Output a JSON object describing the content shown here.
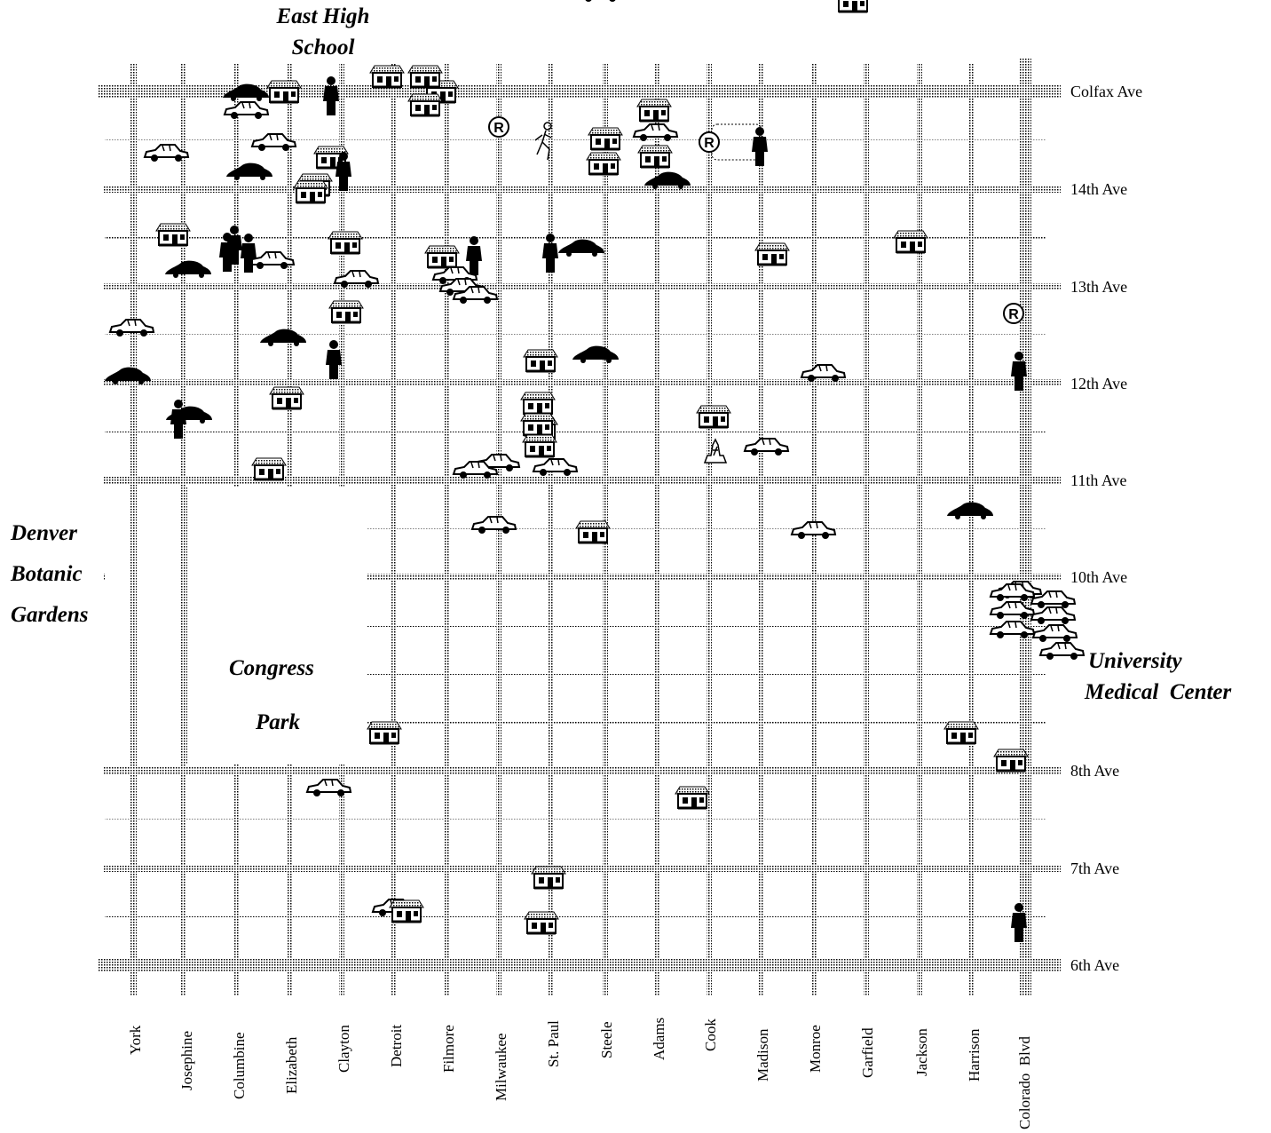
{
  "landmarks": {
    "east_high_line1": "East High",
    "east_high_line2": "School",
    "botanic_line1": "Denver",
    "botanic_line2": "Botanic",
    "botanic_line3": "Gardens",
    "congress_line1": "Congress",
    "congress_line2": "Park",
    "medical_line1": "University",
    "medical_line2": "Medical  Center"
  },
  "avenues": [
    "Colfax Ave",
    "14th Ave",
    "13th Ave",
    "12th Ave",
    "11th Ave",
    "10th Ave",
    "8th Ave",
    "7th Ave",
    "6th Ave"
  ],
  "streets": [
    "York",
    "Josephine",
    "Columbine",
    "Elizabeth",
    "Clayton",
    "Detroit",
    "Filmore",
    "Milwaukee",
    "St. Paul",
    "Steele",
    "Adams",
    "Cook",
    "Madison",
    "Monroe",
    "Garfield",
    "Jackson",
    "Harrison",
    "Colorado  Blvd"
  ],
  "colors": {
    "ink": "#000000",
    "street_shade": "#9a9a9a",
    "background": "#ffffff"
  },
  "markers": [
    {
      "type": "house",
      "street": "Elizabeth",
      "ave": "Colfax Ave"
    },
    {
      "type": "house",
      "street": "Detroit",
      "ave": "Colfax Ave"
    },
    {
      "type": "house",
      "street": "Filmore",
      "ave": "Colfax Ave"
    },
    {
      "type": "person",
      "street": "Clayton",
      "ave": "Colfax Ave"
    },
    {
      "type": "car-dark",
      "street": "Columbine",
      "ave": "Colfax Ave"
    },
    {
      "type": "car",
      "street": "Columbine",
      "ave": "Colfax Ave"
    },
    {
      "type": "car",
      "street": "Elizabeth",
      "ave": "14th Ave"
    },
    {
      "type": "house",
      "street": "Clayton",
      "ave": "14th Ave"
    },
    {
      "type": "house",
      "street": "Clayton",
      "ave": "14th Ave"
    },
    {
      "type": "person",
      "street": "Clayton",
      "ave": "14th Ave"
    },
    {
      "type": "runner",
      "street": "St. Paul",
      "ave": "14th Ave"
    },
    {
      "type": "car",
      "street": "Steele",
      "ave": "Colfax Ave"
    },
    {
      "type": "house",
      "street": "Steele",
      "ave": "14th Ave"
    },
    {
      "type": "house",
      "street": "Adams",
      "ave": "14th Ave"
    },
    {
      "type": "car",
      "street": "Adams",
      "ave": "14th Ave"
    },
    {
      "type": "car-dark",
      "street": "Adams",
      "ave": "14th Ave"
    },
    {
      "type": "restaurant",
      "street": "Cook",
      "ave": "14th Ave"
    },
    {
      "type": "person",
      "street": "Madison",
      "ave": "14th Ave"
    },
    {
      "type": "house",
      "street": "Monroe",
      "ave": "Colfax Ave"
    },
    {
      "type": "restaurant",
      "street": "Milwaukee",
      "ave": "14th Ave"
    },
    {
      "type": "car-dark",
      "street": "Columbine",
      "ave": "14th Ave"
    },
    {
      "type": "car",
      "street": "Josephine",
      "ave": "14th Ave"
    },
    {
      "type": "house",
      "street": "Josephine",
      "ave": "13th Ave"
    },
    {
      "type": "person",
      "street": "Columbine",
      "ave": "13th Ave"
    },
    {
      "type": "car-dark",
      "street": "Josephine",
      "ave": "13th Ave"
    },
    {
      "type": "car",
      "street": "Elizabeth",
      "ave": "13th Ave"
    },
    {
      "type": "house",
      "street": "Clayton",
      "ave": "13th Ave"
    },
    {
      "type": "car",
      "street": "Clayton",
      "ave": "13th Ave"
    },
    {
      "type": "house",
      "street": "Filmore",
      "ave": "13th Ave"
    },
    {
      "type": "person",
      "street": "Milwaukee",
      "ave": "13th Ave"
    },
    {
      "type": "car",
      "street": "Filmore",
      "ave": "13th Ave"
    },
    {
      "type": "person",
      "street": "St. Paul",
      "ave": "13th Ave"
    },
    {
      "type": "car-dark",
      "street": "Steele",
      "ave": "13th Ave"
    },
    {
      "type": "house",
      "street": "Madison",
      "ave": "13th Ave"
    },
    {
      "type": "house",
      "street": "Jackson",
      "ave": "13th Ave"
    },
    {
      "type": "house",
      "street": "Clayton",
      "ave": "12th Ave"
    },
    {
      "type": "car",
      "street": "York",
      "ave": "12th Ave"
    },
    {
      "type": "car-dark",
      "street": "Elizabeth",
      "ave": "12th Ave"
    },
    {
      "type": "person",
      "street": "Clayton",
      "ave": "12th Ave"
    },
    {
      "type": "car-dark",
      "street": "York",
      "ave": "12th Ave"
    },
    {
      "type": "house",
      "street": "St. Paul",
      "ave": "12th Ave"
    },
    {
      "type": "car-dark",
      "street": "Steele",
      "ave": "12th Ave"
    },
    {
      "type": "car",
      "street": "Monroe",
      "ave": "12th Ave"
    },
    {
      "type": "restaurant",
      "street": "Colorado  Blvd",
      "ave": "12th Ave"
    },
    {
      "type": "person",
      "street": "Colorado  Blvd",
      "ave": "12th Ave"
    },
    {
      "type": "house",
      "street": "Elizabeth",
      "ave": "11th Ave"
    },
    {
      "type": "car-dark",
      "street": "Josephine",
      "ave": "11th Ave"
    },
    {
      "type": "person",
      "street": "Josephine",
      "ave": "11th Ave"
    },
    {
      "type": "house",
      "street": "St. Paul",
      "ave": "11th Ave"
    },
    {
      "type": "car",
      "street": "Milwaukee",
      "ave": "11th Ave"
    },
    {
      "type": "house",
      "street": "Cook",
      "ave": "11th Ave"
    },
    {
      "type": "statue",
      "street": "Cook",
      "ave": "11th Ave"
    },
    {
      "type": "car",
      "street": "Madison",
      "ave": "11th Ave"
    },
    {
      "type": "car-dark",
      "street": "Harrison",
      "ave": "10th Ave"
    },
    {
      "type": "house",
      "street": "Steele",
      "ave": "10th Ave"
    },
    {
      "type": "car",
      "street": "Monroe",
      "ave": "10th Ave"
    },
    {
      "type": "car",
      "street": "Milwaukee",
      "ave": "10th Ave"
    },
    {
      "type": "house",
      "street": "Detroit",
      "ave": "8th Ave"
    },
    {
      "type": "house",
      "street": "Harrison",
      "ave": "8th Ave"
    },
    {
      "type": "house",
      "street": "Cook",
      "ave": "8th Ave"
    },
    {
      "type": "car",
      "street": "Detroit",
      "ave": "7th Ave"
    },
    {
      "type": "car",
      "street": "Clayton",
      "ave": "7th Ave"
    },
    {
      "type": "person",
      "street": "Colorado  Blvd",
      "ave": "7th Ave"
    },
    {
      "type": "house",
      "street": "St. Paul",
      "ave": "7th Ave"
    },
    {
      "type": "house",
      "street": "Detroit",
      "ave": "6th Ave"
    },
    {
      "type": "house",
      "street": "St. Paul",
      "ave": "6th Ave"
    },
    {
      "type": "car",
      "street": "Colorado  Blvd",
      "ave": "10th Ave"
    },
    {
      "type": "house",
      "street": "Colorado  Blvd",
      "ave": "8th Ave"
    }
  ]
}
